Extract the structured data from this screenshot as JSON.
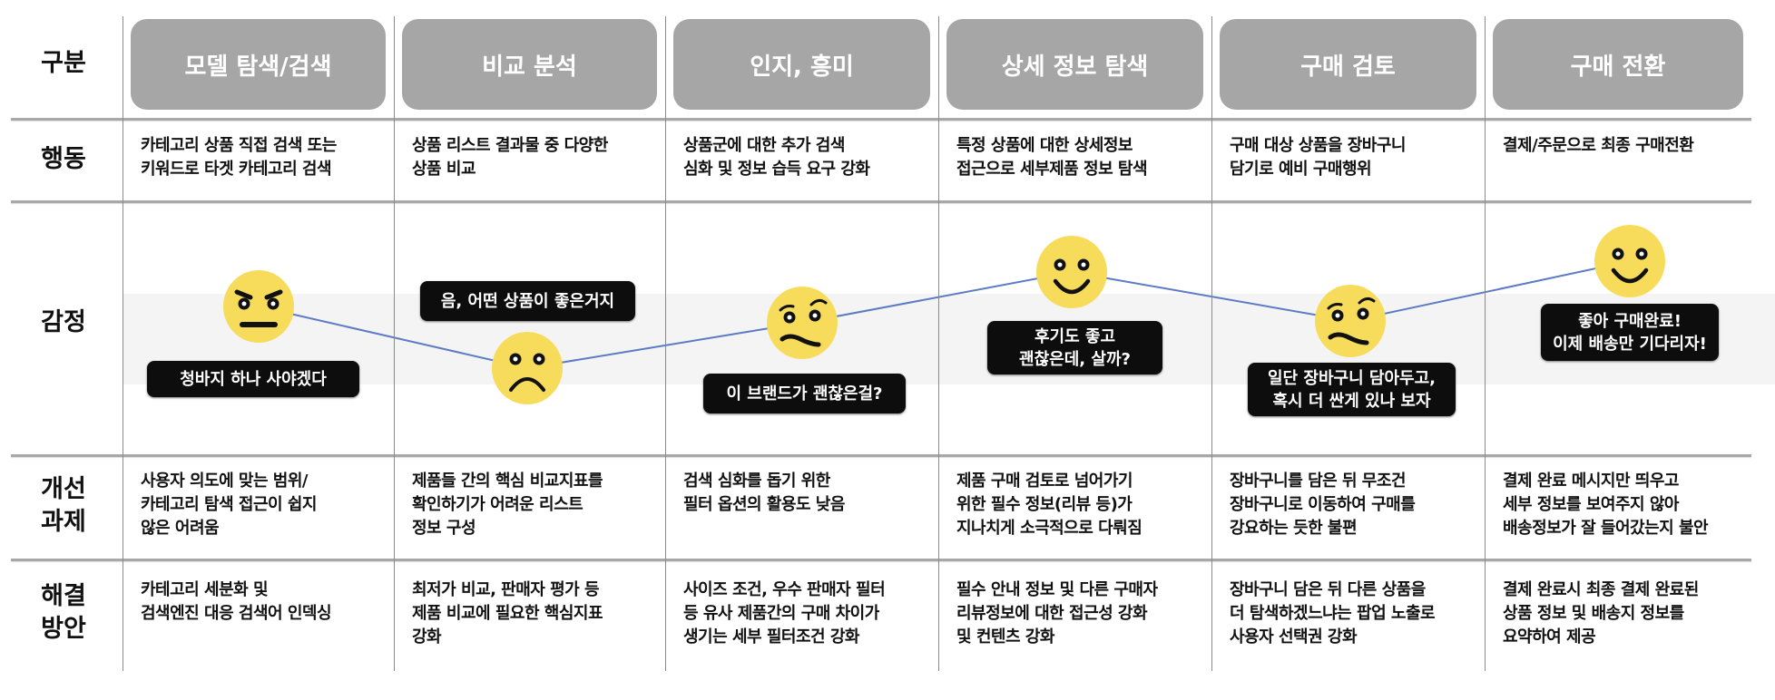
{
  "row_labels": {
    "stage": "구분",
    "action": "행동",
    "emotion": "감정",
    "issue": "개선\n과제",
    "solution": "해결\n방안"
  },
  "colors": {
    "stage_box": "#a6a6a6",
    "face": "#f7dc5b",
    "line": "#5b7bc4",
    "bubble": "#0d0d0d",
    "band": "#f4f4f4"
  },
  "columns": [
    {
      "stage": "모델 탐색/검색",
      "action": "카테고리 상품 직접 검색 또는\n키워드로 타겟 카테고리 검색",
      "emotion": {
        "face": "angry-face-icon",
        "bubble": "청바지 하나 사야겠다"
      },
      "issue": "사용자 의도에 맞는 범위/\n카테고리 탐색 접근이 쉽지\n않은 어려움",
      "solution": "카테고리 세분화 및\n검색엔진 대응 검색어 인덱싱"
    },
    {
      "stage": "비교 분석",
      "action": "상품 리스트 결과물 중 다양한\n상품 비교",
      "emotion": {
        "face": "sad-face-icon",
        "bubble": "음, 어떤 상품이 좋은거지"
      },
      "issue": "제품들 간의 핵심 비교지표를\n확인하기가 어려운 리스트\n정보 구성",
      "solution": "최저가 비교, 판매자 평가 등\n제품 비교에 필요한 핵심지표\n강화"
    },
    {
      "stage": "인지, 흥미",
      "action": "상품군에 대한 추가 검색\n심화 및 정보 습득 요구 강화",
      "emotion": {
        "face": "skeptical-face-icon",
        "bubble": "이 브랜드가 괜찮은걸?"
      },
      "issue": "검색 심화를 돕기 위한\n필터 옵션의 활용도 낮음",
      "solution": "사이즈 조건, 우수 판매자 필터\n등 유사 제품간의 구매 차이가\n생기는 세부 필터조건 강화"
    },
    {
      "stage": "상세 정보 탐색",
      "action": "특정 상품에 대한 상세정보\n접근으로 세부제품 정보 탐색",
      "emotion": {
        "face": "happy-face-icon",
        "bubble": "후기도 좋고\n괜찮은데, 살까?"
      },
      "issue": "제품 구매 검토로 넘어가기\n위한 필수 정보(리뷰 등)가\n지나치게 소극적으로 다뤄짐",
      "solution": "필수 안내 정보 및 다른 구매자\n리뷰정보에 대한 접근성 강화\n및 컨텐츠 강화"
    },
    {
      "stage": "구매 검토",
      "action": "구매 대상 상품을 장바구니\n담기로 예비 구매행위",
      "emotion": {
        "face": "skeptical-face-icon",
        "bubble": "일단 장바구니 담아두고,\n혹시 더 싼게 있나 보자"
      },
      "issue": "장바구니를 담은 뒤 무조건\n장바구니로 이동하여 구매를\n강요하는 듯한 불편",
      "solution": "장바구니 담은 뒤 다른 상품을\n더 탐색하겠느냐는 팝업 노출로\n사용자 선택권 강화"
    },
    {
      "stage": "구매 전환",
      "action": "결제/주문으로 최종 구매전환",
      "emotion": {
        "face": "happy-face-icon",
        "bubble": "좋아 구매완료!\n이제 배송만 기다리자!"
      },
      "issue": "결제 완료 메시지만 띄우고\n세부 정보를 보여주지 않아\n배송정보가 잘 들어갔는지 불안",
      "solution": "결제 완료시 최종 결제 완료된\n상품 정보 및 배송지 정보를\n요약하여 제공"
    }
  ]
}
